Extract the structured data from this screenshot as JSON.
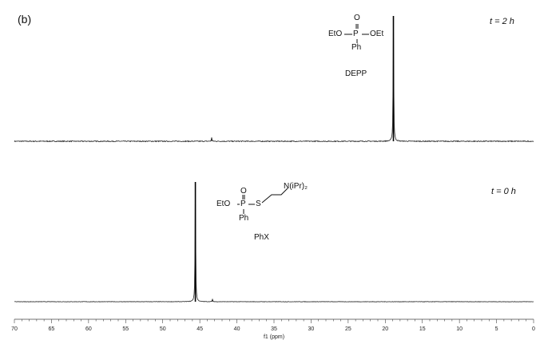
{
  "panel_label": "(b)",
  "spectra": {
    "top": {
      "time_label": "t = 2 h",
      "compound": "DEPP"
    },
    "bottom": {
      "time_label": "t = 0 h",
      "compound": "PhX"
    }
  },
  "structures": {
    "depp": {
      "o": "O",
      "left": "EtO",
      "p": "P",
      "right": "OEt",
      "ph": "Ph"
    },
    "phx": {
      "o": "O",
      "left": "EtO",
      "p": "P",
      "s": "S",
      "ph": "Ph",
      "amine": "N(iPr)₂"
    }
  },
  "chart_data": [
    {
      "type": "line",
      "series": [
        {
          "name": "",
          "peaks": [
            {
              "x": 18.9,
              "rel_intensity": 1.0
            },
            {
              "x": 43.4,
              "rel_intensity": 0.03
            }
          ]
        }
      ],
      "xlabel": "f1 (ppm)",
      "xlim": [
        70,
        0
      ],
      "x_reversed": true,
      "annotations": [
        "t = 2 h",
        "DEPP"
      ]
    },
    {
      "type": "line",
      "series": [
        {
          "name": "",
          "peaks": [
            {
              "x": 45.6,
              "rel_intensity": 1.0
            },
            {
              "x": 43.3,
              "rel_intensity": 0.02
            }
          ]
        }
      ],
      "xlabel": "f1 (ppm)",
      "xlim": [
        70,
        0
      ],
      "x_reversed": true,
      "ticks": [
        70,
        65,
        60,
        55,
        50,
        45,
        40,
        35,
        30,
        25,
        20,
        15,
        10,
        5,
        0
      ],
      "annotations": [
        "t = 0 h",
        "PhX"
      ]
    }
  ]
}
